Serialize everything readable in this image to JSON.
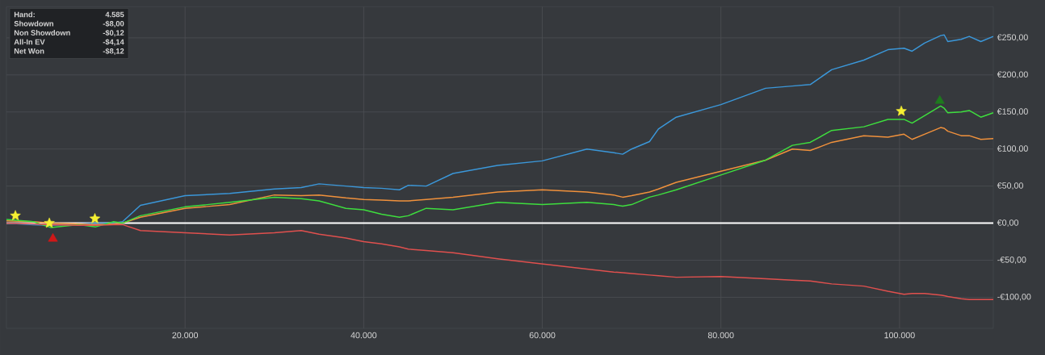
{
  "chart_data": {
    "type": "line",
    "x": [
      0,
      3000,
      5000,
      8000,
      10000,
      12000,
      13000,
      15000,
      20000,
      25000,
      30000,
      33000,
      35000,
      38000,
      40000,
      42000,
      44000,
      45000,
      47000,
      50000,
      55000,
      60000,
      65000,
      68000,
      69000,
      70000,
      72000,
      73000,
      75000,
      80000,
      85000,
      88000,
      90000,
      92400,
      96000,
      98700,
      100500,
      101400,
      102800,
      104600,
      105000,
      105400,
      106900,
      107800,
      109100,
      110500
    ],
    "series": [
      {
        "color": "#3b97d9",
        "values": [
          0,
          -2,
          -3,
          null,
          0,
          0,
          2,
          24,
          37,
          40,
          46,
          48,
          53,
          50,
          48,
          47,
          45,
          51,
          50,
          67,
          78,
          84,
          100,
          95,
          93,
          100,
          110,
          127,
          143,
          160,
          182,
          185,
          187,
          207,
          220,
          234,
          236,
          232,
          243,
          253,
          254,
          245,
          248,
          252,
          245,
          252
        ]
      },
      {
        "color": "#f0913c",
        "values": [
          3,
          2,
          0,
          -1,
          -2,
          -1,
          0,
          8,
          20,
          25,
          38,
          37,
          38,
          34,
          32,
          31,
          30,
          30,
          32,
          35,
          42,
          45,
          42,
          38,
          35,
          37,
          42,
          46,
          55,
          70,
          85,
          100,
          98,
          109,
          118,
          116,
          120,
          113,
          120,
          129,
          128,
          124,
          118,
          118,
          113,
          114
        ]
      },
      {
        "color": "#3ede3e",
        "values": [
          5,
          2,
          -6,
          -2,
          -5,
          2,
          0,
          10,
          22,
          28,
          35,
          33,
          30,
          20,
          18,
          12,
          8,
          10,
          20,
          18,
          28,
          25,
          28,
          25,
          23,
          25,
          35,
          38,
          45,
          65,
          85,
          105,
          109,
          125,
          130,
          140,
          140,
          135,
          145,
          158,
          155,
          149,
          150,
          152,
          143,
          149
        ]
      },
      {
        "color": "#e0504e",
        "values": [
          0,
          -1,
          -2,
          -3,
          -3,
          -2,
          -2,
          -10,
          -13,
          -16,
          -13,
          -10,
          -15,
          -20,
          -25,
          -28,
          -32,
          -35,
          -37,
          -40,
          -48,
          -55,
          -62,
          -66,
          -67,
          -68,
          -70,
          -71,
          -73,
          -72,
          -75,
          -77,
          -78,
          -82,
          -85,
          -92,
          -96,
          -95,
          -95,
          -97,
          -98,
          -99,
          -102,
          -103,
          -103,
          -103
        ]
      },
      {
        "type": "scatter",
        "marker": "star",
        "color": "#f5f032",
        "x": [
          1000,
          4800,
          9900,
          100200
        ],
        "values": [
          10,
          0,
          6,
          151
        ]
      },
      {
        "type": "scatter",
        "marker": "triangle",
        "color": "#d01818",
        "x": [
          5200
        ],
        "values": [
          -21
        ]
      },
      {
        "type": "scatter",
        "marker": "triangle",
        "color": "#1e7a1e",
        "x": [
          104500
        ],
        "values": [
          165
        ]
      }
    ],
    "xlim": [
      0,
      110500
    ],
    "ylim": [
      -142,
      292
    ],
    "xticks": [
      {
        "value": 20000,
        "label": "20.000"
      },
      {
        "value": 40000,
        "label": "40.000"
      },
      {
        "value": 60000,
        "label": "60.000"
      },
      {
        "value": 80000,
        "label": "80.000"
      },
      {
        "value": 100000,
        "label": "100.000"
      }
    ],
    "yticks": [
      {
        "value": -100,
        "label": "-€100,00"
      },
      {
        "value": -50,
        "label": "-€50,00"
      },
      {
        "value": 0,
        "label": "€0,00"
      },
      {
        "value": 50,
        "label": "€50,00"
      },
      {
        "value": 100,
        "label": "€100,00"
      },
      {
        "value": 150,
        "label": "€150,00"
      },
      {
        "value": 200,
        "label": "€200,00"
      },
      {
        "value": 250,
        "label": "€250,00"
      }
    ],
    "grid": true,
    "ref_lines": [
      {
        "axis": "y",
        "value": 0,
        "color": "#ffffff"
      }
    ],
    "annotations": [
      "Hand:",
      "4.585",
      "Showdown",
      "-$8,00",
      "Non Showdown",
      "-$0,12",
      "All-In EV",
      "-$4,14",
      "Net Won",
      "-$8,12"
    ]
  }
}
